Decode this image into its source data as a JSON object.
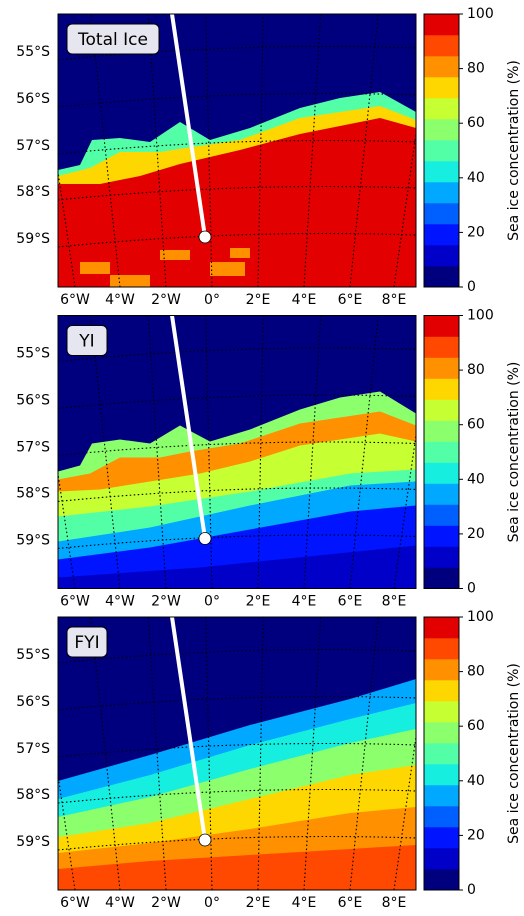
{
  "panels": [
    {
      "title": "Total Ice",
      "lat_labels": [
        "55°S",
        "56°S",
        "57°S",
        "58°S",
        "59°S"
      ],
      "lon_labels": [
        "6°W",
        "4°W",
        "2°W",
        "0°",
        "2°E",
        "4°E",
        "6°E",
        "8°E"
      ],
      "colorbar": {
        "label": "Sea ice concentration (%)",
        "lim": [
          0,
          100
        ],
        "ticks": [
          0,
          20,
          40,
          60,
          80,
          100
        ]
      }
    },
    {
      "title": "YI",
      "lat_labels": [
        "55°S",
        "56°S",
        "57°S",
        "58°S",
        "59°S"
      ],
      "lon_labels": [
        "6°W",
        "4°W",
        "2°W",
        "0°",
        "2°E",
        "4°E",
        "6°E",
        "8°E"
      ],
      "colorbar": {
        "label": "Sea ice concentration (%)",
        "lim": [
          0,
          100
        ],
        "ticks": [
          0,
          20,
          40,
          60,
          80,
          100
        ]
      }
    },
    {
      "title": "FYI",
      "lat_labels": [
        "55°S",
        "56°S",
        "57°S",
        "58°S",
        "59°S"
      ],
      "lon_labels": [
        "6°W",
        "4°W",
        "2°W",
        "0°",
        "2°E",
        "4°E",
        "6°E",
        "8°E"
      ],
      "colorbar": {
        "label": "Sea ice concentration (%)",
        "lim": [
          0,
          100
        ],
        "ticks": [
          0,
          20,
          40,
          60,
          80,
          100
        ]
      }
    }
  ],
  "colormap": [
    "#00007f",
    "#0000c8",
    "#0014ff",
    "#0060ff",
    "#00a8ff",
    "#16eee0",
    "#52ffa6",
    "#8cff6c",
    "#c6ff32",
    "#ffd700",
    "#ff9000",
    "#ff4800",
    "#e30000"
  ]
}
